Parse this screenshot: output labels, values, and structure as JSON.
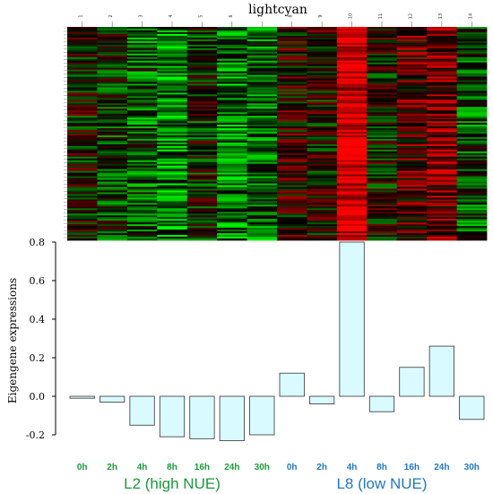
{
  "chart_data": [
    {
      "type": "heatmap",
      "title": "lightcyan",
      "columns": [
        "1",
        "2",
        "3",
        "4",
        "5",
        "6",
        "7",
        "8",
        "9",
        "10",
        "11",
        "12",
        "13",
        "14"
      ],
      "column_bias": [
        0.0,
        -0.15,
        -0.35,
        -0.55,
        -0.1,
        -0.5,
        -0.45,
        0.15,
        0.05,
        1.0,
        0.0,
        0.35,
        0.45,
        -0.3
      ],
      "colors": {
        "low": "#00ff00",
        "mid": "#000000",
        "high": "#ff0000"
      }
    },
    {
      "type": "bar",
      "ylabel": "Eigengene expressions",
      "ylim": [
        -0.22,
        0.8
      ],
      "yticks": [
        "0.8",
        "0.6",
        "0.4",
        "0.2",
        "0.0",
        "-0.2"
      ],
      "categories": [
        "0h",
        "2h",
        "4h",
        "8h",
        "16h",
        "24h",
        "30h",
        "0h",
        "2h",
        "4h",
        "8h",
        "16h",
        "24h",
        "30h"
      ],
      "values": [
        -0.01,
        -0.03,
        -0.15,
        -0.21,
        -0.22,
        -0.23,
        -0.2,
        0.12,
        -0.04,
        0.8,
        -0.08,
        0.15,
        0.26,
        -0.12
      ],
      "bar_color": "#d9fbff",
      "groups": [
        {
          "label": "L2 (high NUE)",
          "color": "#1a9a3a",
          "start": 0,
          "end": 6
        },
        {
          "label": "L8 (low NUE)",
          "color": "#2277c4",
          "start": 7,
          "end": 13
        }
      ]
    }
  ]
}
